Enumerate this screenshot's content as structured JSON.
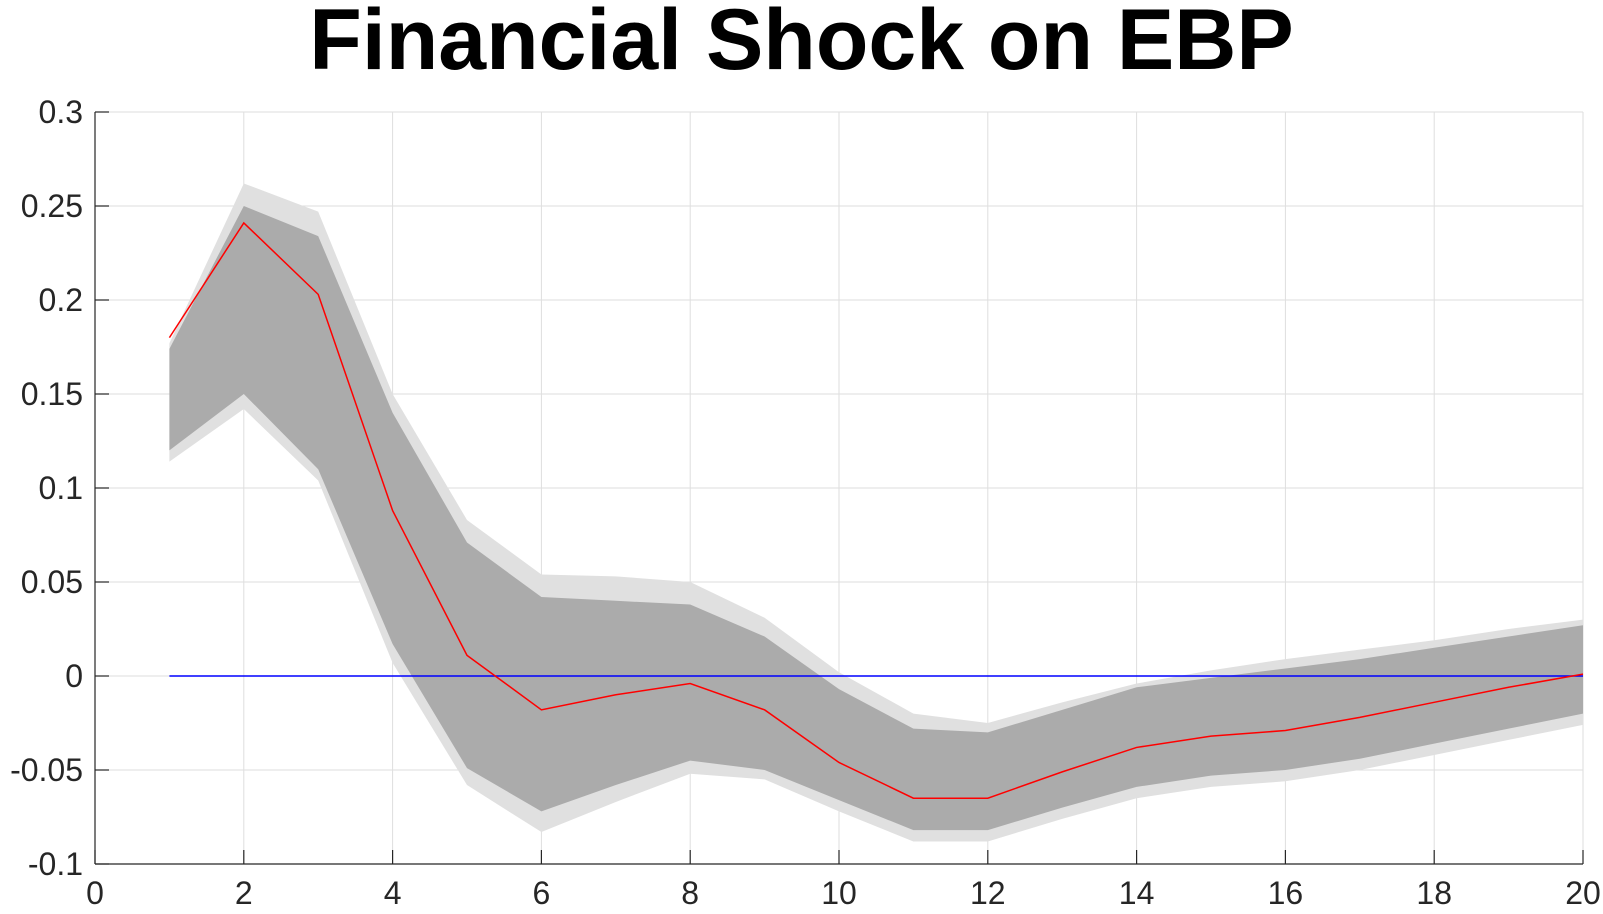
{
  "chart_data": {
    "type": "line",
    "title": "Financial Shock on EBP",
    "xlabel": "",
    "ylabel": "",
    "xlim": [
      0,
      20
    ],
    "ylim": [
      -0.1,
      0.3
    ],
    "xticks": [
      0,
      2,
      4,
      6,
      8,
      10,
      12,
      14,
      16,
      18,
      20
    ],
    "yticks": [
      -0.1,
      -0.05,
      0,
      0.05,
      0.1,
      0.15,
      0.2,
      0.25,
      0.3
    ],
    "xtick_labels": [
      "0",
      "2",
      "4",
      "6",
      "8",
      "10",
      "12",
      "14",
      "16",
      "18",
      "20"
    ],
    "ytick_labels": [
      "-0.1",
      "-0.05",
      "0",
      "0.05",
      "0.1",
      "0.15",
      "0.2",
      "0.25",
      "0.3"
    ],
    "grid": true,
    "x": [
      1,
      2,
      3,
      4,
      5,
      6,
      7,
      8,
      9,
      10,
      11,
      12,
      13,
      14,
      15,
      16,
      17,
      18,
      19,
      20
    ],
    "series": [
      {
        "values": [
          0.18,
          0.241,
          0.203,
          0.088,
          0.011,
          -0.018,
          -0.01,
          -0.004,
          -0.018,
          -0.046,
          -0.065,
          -0.065,
          -0.051,
          -0.038,
          -0.032,
          -0.029,
          -0.022,
          -0.014,
          -0.006,
          0.001
        ],
        "color": "#ff0000"
      },
      {
        "values": [
          0,
          0,
          0,
          0,
          0,
          0,
          0,
          0,
          0,
          0,
          0,
          0,
          0,
          0,
          0,
          0,
          0,
          0,
          0,
          0
        ],
        "color": "#0000ff"
      }
    ],
    "bands": [
      {
        "lower": [
          0.114,
          0.142,
          0.104,
          0.007,
          -0.058,
          -0.083,
          -0.067,
          -0.052,
          -0.055,
          -0.072,
          -0.088,
          -0.088,
          -0.076,
          -0.065,
          -0.059,
          -0.056,
          -0.05,
          -0.042,
          -0.034,
          -0.026
        ],
        "upper": [
          0.177,
          0.262,
          0.247,
          0.15,
          0.083,
          0.054,
          0.053,
          0.05,
          0.031,
          0.002,
          -0.02,
          -0.025,
          -0.014,
          -0.004,
          0.003,
          0.009,
          0.014,
          0.019,
          0.025,
          0.03
        ],
        "color": "#e0e0e0"
      },
      {
        "lower": [
          0.12,
          0.15,
          0.11,
          0.017,
          -0.049,
          -0.072,
          -0.058,
          -0.045,
          -0.05,
          -0.066,
          -0.082,
          -0.082,
          -0.07,
          -0.059,
          -0.053,
          -0.05,
          -0.044,
          -0.036,
          -0.028,
          -0.02
        ],
        "upper": [
          0.174,
          0.25,
          0.234,
          0.14,
          0.071,
          0.042,
          0.04,
          0.038,
          0.021,
          -0.007,
          -0.028,
          -0.03,
          -0.018,
          -0.006,
          -0.001,
          0.004,
          0.009,
          0.015,
          0.021,
          0.027
        ],
        "color": "#ababab"
      }
    ]
  }
}
